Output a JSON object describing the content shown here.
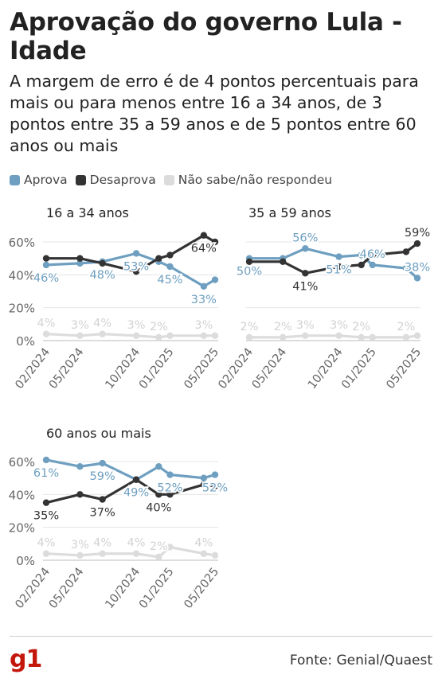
{
  "title": "Aprovação do governo Lula - Idade",
  "subtitle": "A margem de erro é de 4 pontos percentuais para mais ou para menos entre 16 a 34 anos, de 3 pontos entre 35 a 59 anos e de 5 pontos entre 60 anos ou mais",
  "legend": [
    {
      "label": "Aprova",
      "color": "#6e9fc0"
    },
    {
      "label": "Desaprova",
      "color": "#333333"
    },
    {
      "label": "Não sabe/não respondeu",
      "color": "#dcdcdc"
    }
  ],
  "source": "Fonte: Genial/Quaest",
  "logo": "g1",
  "chart_data": [
    {
      "type": "line",
      "title": "16 a 34 anos",
      "x": [
        "02/2024",
        "05/2024",
        "07/2024",
        "10/2024",
        "12/2024",
        "01/2025",
        "04/2025",
        "05/2025"
      ],
      "x_tick_labels": [
        "02/2024",
        "05/2024",
        "10/2024",
        "01/2025",
        "05/2025"
      ],
      "yticks": [
        "60%",
        "40%",
        "20%",
        "0%"
      ],
      "ylim": [
        0,
        65
      ],
      "grid": true,
      "series": [
        {
          "name": "Aprova",
          "color": "#6e9fc0",
          "values": [
            46,
            47,
            48,
            53,
            48,
            45,
            33,
            37
          ],
          "labels": [
            "46%",
            "",
            "48%",
            "53%",
            "",
            "45%",
            "33%",
            ""
          ]
        },
        {
          "name": "Desaprova",
          "color": "#333333",
          "values": [
            50,
            50,
            47,
            42,
            50,
            52,
            64,
            60
          ],
          "labels": [
            "",
            "",
            "",
            "",
            "",
            "",
            "64%",
            ""
          ]
        },
        {
          "name": "Não sabe/não respondeu",
          "color": "#dcdcdc",
          "values": [
            4,
            3,
            4,
            3,
            2,
            3,
            3,
            3
          ],
          "labels": [
            "4%",
            "3%",
            "4%",
            "3%",
            "2%",
            "",
            "3%",
            ""
          ]
        }
      ]
    },
    {
      "type": "line",
      "title": "35 a 59 anos",
      "x": [
        "02/2024",
        "05/2024",
        "07/2024",
        "10/2024",
        "12/2024",
        "01/2025",
        "04/2025",
        "05/2025"
      ],
      "x_tick_labels": [
        "02/2024",
        "05/2024",
        "10/2024",
        "01/2025",
        "05/2025"
      ],
      "yticks": [
        "60%",
        "40%",
        "20%",
        "0%"
      ],
      "ylim": [
        0,
        65
      ],
      "grid": true,
      "series": [
        {
          "name": "Aprova",
          "color": "#6e9fc0",
          "values": [
            50,
            50,
            56,
            51,
            52,
            46,
            44,
            38
          ],
          "labels": [
            "50%",
            "",
            "56%",
            "51%",
            "",
            "46%",
            "",
            "38%"
          ]
        },
        {
          "name": "Desaprova",
          "color": "#333333",
          "values": [
            48,
            48,
            41,
            45,
            46,
            52,
            54,
            59
          ],
          "labels": [
            "",
            "",
            "41%",
            "",
            "",
            "",
            "",
            "59%"
          ]
        },
        {
          "name": "Não sabe/não respondeu",
          "color": "#dcdcdc",
          "values": [
            2,
            2,
            3,
            3,
            2,
            2,
            2,
            3
          ],
          "labels": [
            "2%",
            "2%",
            "3%",
            "3%",
            "2%",
            "",
            "2%",
            ""
          ]
        }
      ]
    },
    {
      "type": "line",
      "title": "60 anos ou mais",
      "x": [
        "02/2024",
        "05/2024",
        "07/2024",
        "10/2024",
        "12/2024",
        "01/2025",
        "04/2025",
        "05/2025"
      ],
      "x_tick_labels": [
        "02/2024",
        "05/2024",
        "10/2024",
        "01/2025",
        "05/2025"
      ],
      "yticks": [
        "60%",
        "40%",
        "20%",
        "0%"
      ],
      "ylim": [
        0,
        65
      ],
      "grid": true,
      "series": [
        {
          "name": "Aprova",
          "color": "#6e9fc0",
          "values": [
            61,
            57,
            59,
            49,
            57,
            52,
            50,
            52
          ],
          "labels": [
            "61%",
            "",
            "59%",
            "49%",
            "",
            "52%",
            "",
            "52%"
          ]
        },
        {
          "name": "Desaprova",
          "color": "#333333",
          "values": [
            35,
            40,
            37,
            49,
            40,
            40,
            46,
            45
          ],
          "labels": [
            "35%",
            "",
            "37%",
            "",
            "40%",
            "",
            "",
            ""
          ]
        },
        {
          "name": "Não sabe/não respondeu",
          "color": "#dcdcdc",
          "values": [
            4,
            3,
            4,
            4,
            2,
            8,
            4,
            3
          ],
          "labels": [
            "4%",
            "3%",
            "4%",
            "4%",
            "2%",
            "",
            "4%",
            ""
          ]
        }
      ]
    }
  ]
}
